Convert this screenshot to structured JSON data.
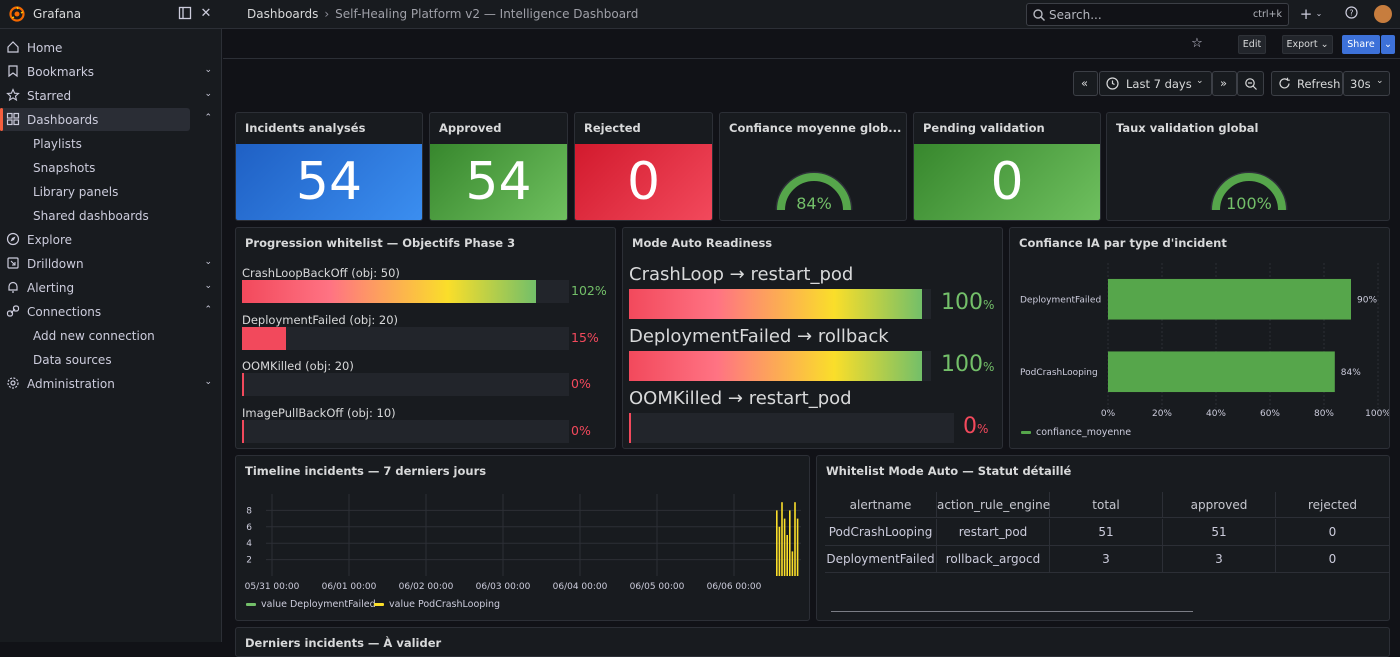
{
  "app": {
    "name": "Grafana"
  },
  "breadcrumb": {
    "root": "Dashboards",
    "current": "Self-Healing Platform v2 — Intelligence Dashboard"
  },
  "search": {
    "placeholder": "Search...",
    "shortcut": "ctrl+k"
  },
  "toolbar": {
    "edit": "Edit",
    "export": "Export",
    "share": "Share",
    "time_range": "Last 7 days",
    "refresh": "Refresh",
    "interval": "30s"
  },
  "sidebar": {
    "items": [
      {
        "label": "Home",
        "icon": "home-icon"
      },
      {
        "label": "Bookmarks",
        "icon": "bookmark-icon"
      },
      {
        "label": "Starred",
        "icon": "star-icon"
      },
      {
        "label": "Dashboards",
        "icon": "dashboards-icon"
      },
      {
        "label": "Playlists"
      },
      {
        "label": "Snapshots"
      },
      {
        "label": "Library panels"
      },
      {
        "label": "Shared dashboards"
      },
      {
        "label": "Explore",
        "icon": "compass-icon"
      },
      {
        "label": "Drilldown",
        "icon": "drilldown-icon"
      },
      {
        "label": "Alerting",
        "icon": "bell-icon"
      },
      {
        "label": "Connections",
        "icon": "link-icon"
      },
      {
        "label": "Add new connection"
      },
      {
        "label": "Data sources"
      },
      {
        "label": "Administration",
        "icon": "gear-icon"
      }
    ]
  },
  "stats": {
    "incidents": {
      "title": "Incidents analysés",
      "value": "54",
      "color": "#3274d9"
    },
    "approved": {
      "title": "Approved",
      "value": "54",
      "color": "#56a64b"
    },
    "rejected": {
      "title": "Rejected",
      "value": "0",
      "color": "#e02f44"
    },
    "confidence": {
      "title": "Confiance moyenne glob...",
      "value": "84%",
      "percent": 84
    },
    "pending": {
      "title": "Pending validation",
      "value": "0",
      "color": "#56a64b"
    },
    "validation_rate": {
      "title": "Taux validation global",
      "value": "100%",
      "percent": 100
    }
  },
  "progression": {
    "title": "Progression whitelist — Objectifs Phase 3",
    "rows": [
      {
        "label": "CrashLoopBackOff (obj: 50)",
        "value": "102%",
        "fraction": 1.02,
        "color": "#73bf69"
      },
      {
        "label": "DeploymentFailed (obj: 20)",
        "value": "15%",
        "fraction": 0.15,
        "color": "#f2495c"
      },
      {
        "label": "OOMKilled (obj: 20)",
        "value": "0%",
        "fraction": 0,
        "color": "#f2495c"
      },
      {
        "label": "ImagePullBackOff (obj: 10)",
        "value": "0%",
        "fraction": 0,
        "color": "#f2495c"
      }
    ]
  },
  "readiness": {
    "title": "Mode Auto Readiness",
    "rows": [
      {
        "label": "CrashLoop → restart_pod",
        "value": "100",
        "unit": "%",
        "fraction": 1,
        "color": "#73bf69"
      },
      {
        "label": "DeploymentFailed → rollback",
        "value": "100",
        "unit": "%",
        "fraction": 1,
        "color": "#73bf69"
      },
      {
        "label": "OOMKilled → restart_pod",
        "value": "0",
        "unit": "%",
        "fraction": 0,
        "color": "#f2495c"
      }
    ]
  },
  "confidence_chart": {
    "title": "Confiance IA par type d'incident",
    "legend": "confiance_moyenne"
  },
  "timeline": {
    "title": "Timeline incidents — 7 derniers jours",
    "legend": [
      {
        "label": "value DeploymentFailed",
        "color": "#73bf69"
      },
      {
        "label": "value PodCrashLooping",
        "color": "#fade2a"
      }
    ]
  },
  "whitelist_table": {
    "title": "Whitelist Mode Auto — Statut détaillé",
    "columns": [
      "alertname",
      "action_rule_engine",
      "total",
      "approved",
      "rejected"
    ],
    "rows": [
      [
        "PodCrashLooping",
        "restart_pod",
        "51",
        "51",
        "0"
      ],
      [
        "DeploymentFailed",
        "rollback_argocd",
        "3",
        "3",
        "0"
      ]
    ]
  },
  "bottom_panel": {
    "title": "Derniers incidents — À valider"
  },
  "chart_data": [
    {
      "type": "bar",
      "title": "Confiance IA par type d'incident",
      "orientation": "horizontal",
      "categories": [
        "DeploymentFailed",
        "PodCrashLooping"
      ],
      "series": [
        {
          "name": "confiance_moyenne",
          "values": [
            90,
            84
          ],
          "color": "#56a64b"
        }
      ],
      "value_labels": [
        "90%",
        "84%"
      ],
      "xticks": [
        "0%",
        "20%",
        "40%",
        "60%",
        "80%",
        "100%"
      ],
      "xlim": [
        0,
        100
      ]
    },
    {
      "type": "bar",
      "title": "Timeline incidents — 7 derniers jours",
      "xticks": [
        "05/31 00:00",
        "06/01 00:00",
        "06/02 00:00",
        "06/03 00:00",
        "06/04 00:00",
        "06/05 00:00",
        "06/06 00:00"
      ],
      "yticks": [
        "2",
        "4",
        "6",
        "8"
      ],
      "ylim": [
        0,
        10
      ],
      "series": [
        {
          "name": "value PodCrashLooping",
          "color": "#fade2a",
          "values": [
            8,
            6,
            9,
            7,
            5,
            8,
            3,
            9,
            7
          ]
        },
        {
          "name": "value DeploymentFailed",
          "color": "#73bf69",
          "values": []
        }
      ]
    }
  ]
}
